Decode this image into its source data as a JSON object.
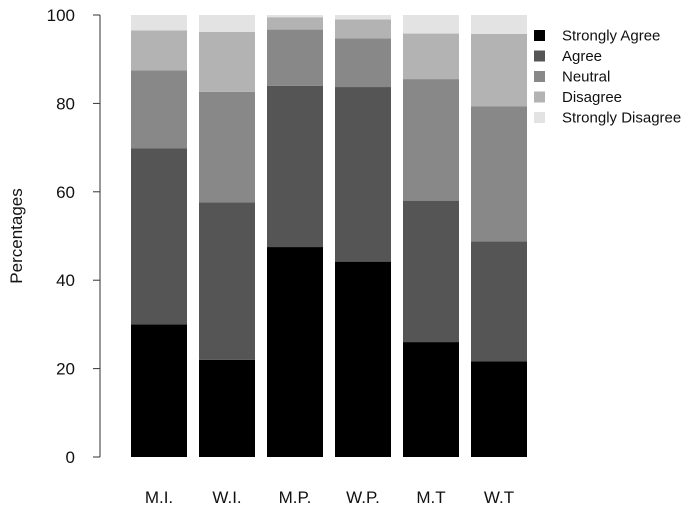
{
  "chart_data": {
    "type": "bar",
    "stacked": true,
    "title": "",
    "xlabel": "",
    "ylabel": "Percentages",
    "ylim": [
      0,
      100
    ],
    "yticks": [
      0,
      20,
      40,
      60,
      80,
      100
    ],
    "categories": [
      "M.I.",
      "W.I.",
      "M.P.",
      "W.P.",
      "M.T",
      "W.T"
    ],
    "series": [
      {
        "name": "Strongly Agree",
        "color": "#000000",
        "values": [
          30.0,
          22.0,
          47.5,
          44.2,
          26.0,
          21.6
        ]
      },
      {
        "name": "Agree",
        "color": "#555555",
        "values": [
          39.8,
          35.6,
          36.5,
          39.5,
          32.0,
          27.2
        ]
      },
      {
        "name": "Neutral",
        "color": "#888888",
        "values": [
          17.7,
          25.0,
          12.7,
          11.0,
          27.5,
          30.5
        ]
      },
      {
        "name": "Disagree",
        "color": "#b3b3b3",
        "values": [
          9.0,
          13.6,
          2.8,
          4.3,
          10.3,
          16.4
        ]
      },
      {
        "name": "Strongly Disagree",
        "color": "#e3e3e3",
        "values": [
          3.5,
          3.8,
          0.5,
          1.0,
          4.2,
          4.3
        ]
      }
    ],
    "grid": false,
    "legend_position": "top-right"
  }
}
